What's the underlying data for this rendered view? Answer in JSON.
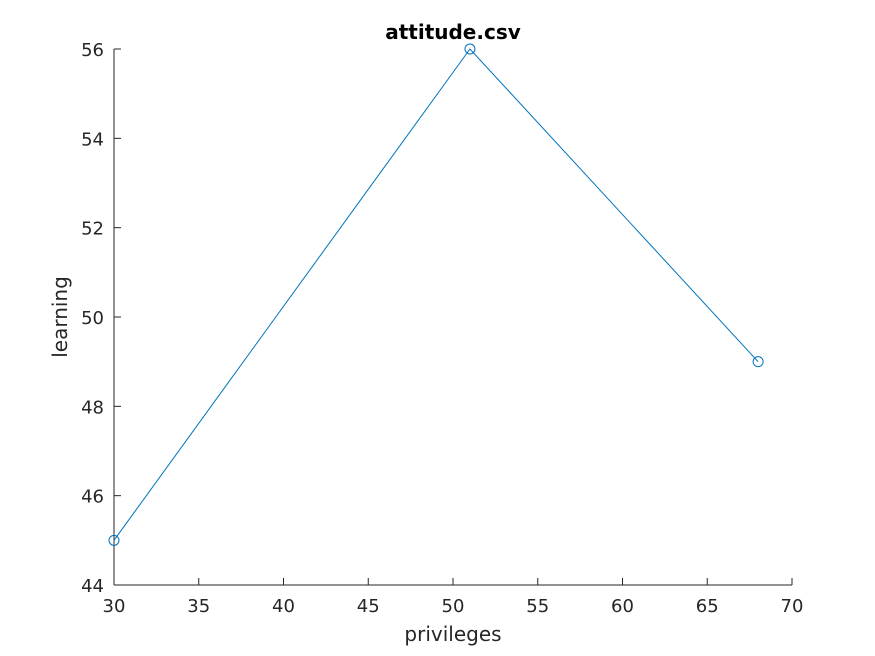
{
  "chart_data": {
    "type": "line",
    "title": "attitude.csv",
    "xlabel": "privileges",
    "ylabel": "learning",
    "xlim": [
      30,
      70
    ],
    "ylim": [
      44,
      56
    ],
    "xticks": [
      30,
      35,
      40,
      45,
      50,
      55,
      60,
      65,
      70
    ],
    "yticks": [
      44,
      46,
      48,
      50,
      52,
      54,
      56
    ],
    "grid": false,
    "series": [
      {
        "x": [
          30,
          51,
          68
        ],
        "y": [
          45,
          56,
          49
        ],
        "color": "#0072BD",
        "marker": "circle"
      }
    ]
  }
}
